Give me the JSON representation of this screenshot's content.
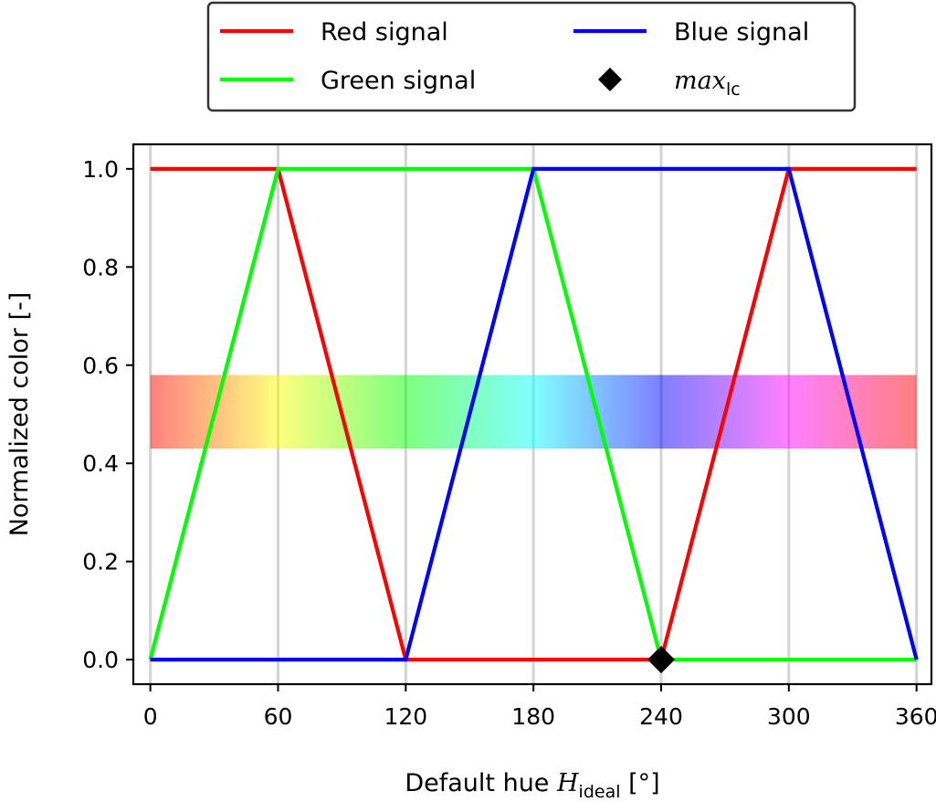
{
  "chart_data": {
    "type": "line",
    "xlabel": {
      "prefix": "Default hue ",
      "symbol": "H",
      "subscript": "ideal",
      "suffix": " [°]"
    },
    "ylabel": "Normalized color [-]",
    "xlim": [
      -8,
      367
    ],
    "ylim": [
      -0.05,
      1.05
    ],
    "xticks": [
      "0",
      "60",
      "120",
      "180",
      "240",
      "300",
      "360"
    ],
    "yticks": [
      "0.0",
      "0.2",
      "0.4",
      "0.6",
      "0.8",
      "1.0"
    ],
    "xtick_values": [
      0,
      60,
      120,
      180,
      240,
      300,
      360
    ],
    "ytick_values": [
      0.0,
      0.2,
      0.4,
      0.6,
      0.8,
      1.0
    ],
    "grid": "vertical",
    "legend_placement": "top, outside",
    "series": [
      {
        "name": "Red signal",
        "color": "#ff0000",
        "x": [
          0,
          60,
          120,
          240,
          300,
          360
        ],
        "y": [
          1,
          1,
          0,
          0,
          1,
          1
        ]
      },
      {
        "name": "Green signal",
        "color": "#00ff00",
        "x": [
          0,
          60,
          180,
          240,
          360
        ],
        "y": [
          0,
          1,
          1,
          0,
          0
        ]
      },
      {
        "name": "Blue signal",
        "color": "#0000ff",
        "x": [
          0,
          120,
          180,
          300,
          360
        ],
        "y": [
          0,
          0,
          1,
          1,
          0
        ]
      }
    ],
    "marker": {
      "name": "max",
      "subscript": "lc",
      "x": 240,
      "y": 0,
      "color": "#000000",
      "shape": "diamond"
    },
    "hue_band": {
      "y_range": [
        0.43,
        0.58
      ],
      "x_range": [
        0,
        360
      ],
      "opacity": 0.5
    }
  }
}
